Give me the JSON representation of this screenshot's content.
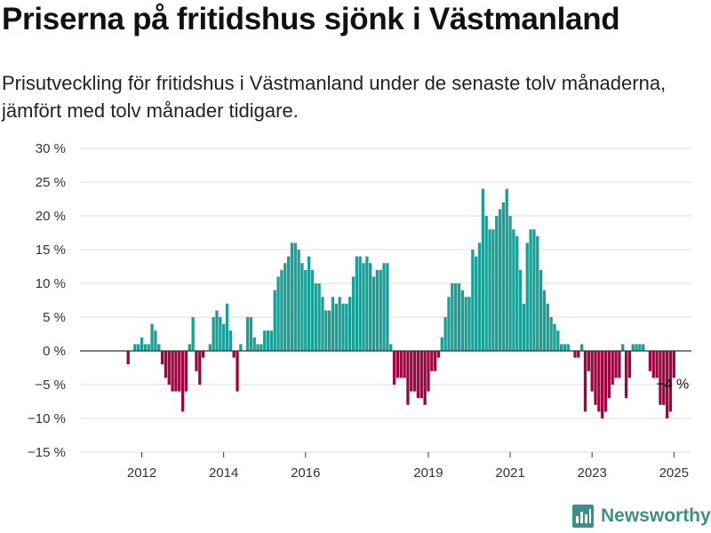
{
  "header": {
    "title": "Priserna på fritidshus sjönk i Västmanland",
    "subtitle": "Prisutveckling för fritidshus i Västmanland under de senaste tolv månaderna, jämfört med tolv månader tidigare."
  },
  "brand": {
    "name": "Newsworthy",
    "color": "#3f8e8a",
    "icon": "bar-chart-logo-icon"
  },
  "chart_data": {
    "type": "bar",
    "title": "",
    "xlabel": "",
    "ylabel": "",
    "unit": "%",
    "ylim": [
      -15,
      30
    ],
    "yticks": [
      30,
      25,
      20,
      15,
      10,
      5,
      0,
      -5,
      -10,
      -15
    ],
    "ytick_labels": [
      "30 %",
      "25 %",
      "20 %",
      "15 %",
      "10 %",
      "5 %",
      "0 %",
      "−5 %",
      "−10 %",
      "−15 %"
    ],
    "xticks": [
      "2012",
      "2014",
      "2016",
      "2019",
      "2021",
      "2023",
      "2025"
    ],
    "grid": true,
    "colors": {
      "positive": "#1a9e96",
      "negative": "#9b0740",
      "grid": "#dddddd",
      "zero_line": "#333333"
    },
    "annotation": {
      "label": "−4 %"
    },
    "series": [
      {
        "values": [
          null,
          null,
          null,
          null,
          null,
          null,
          null,
          null,
          -2,
          null,
          1,
          1,
          2,
          1,
          1,
          4,
          3,
          1,
          -2,
          -4,
          -5,
          -6,
          -6,
          -6,
          -9,
          -6,
          1,
          5,
          -3,
          -5,
          -1,
          null,
          1,
          5,
          6,
          5,
          4,
          7,
          3,
          -1,
          -6,
          1,
          null,
          5,
          5,
          2,
          1,
          1,
          3,
          3,
          3,
          9,
          11,
          12,
          13,
          14,
          16,
          16,
          15,
          13,
          12,
          14,
          12,
          10,
          10,
          8,
          6,
          6,
          8,
          7,
          8,
          7,
          7,
          8,
          11,
          14,
          14,
          13,
          14,
          13,
          11,
          12,
          12,
          13,
          13,
          1,
          -5,
          -4,
          -4,
          -4,
          -8,
          -6,
          -6,
          -7,
          -7,
          -8,
          -6,
          -3,
          -3,
          -1,
          2,
          5,
          8,
          10,
          10,
          10,
          9,
          8,
          8,
          15,
          14,
          16,
          24,
          20,
          18,
          18,
          20,
          21,
          22,
          24,
          20,
          18,
          17,
          12,
          7,
          16,
          18,
          18,
          17,
          12,
          9,
          7,
          5,
          4,
          3,
          1,
          1,
          1,
          null,
          -1,
          -1,
          1,
          -9,
          -3,
          -6,
          -8,
          -9,
          -10,
          -9,
          -7,
          -5,
          -4,
          -4,
          1,
          -7,
          -4,
          1,
          1,
          1,
          1,
          null,
          -3,
          -4,
          -4,
          -8,
          -8,
          -10,
          -9,
          -4
        ]
      }
    ]
  }
}
